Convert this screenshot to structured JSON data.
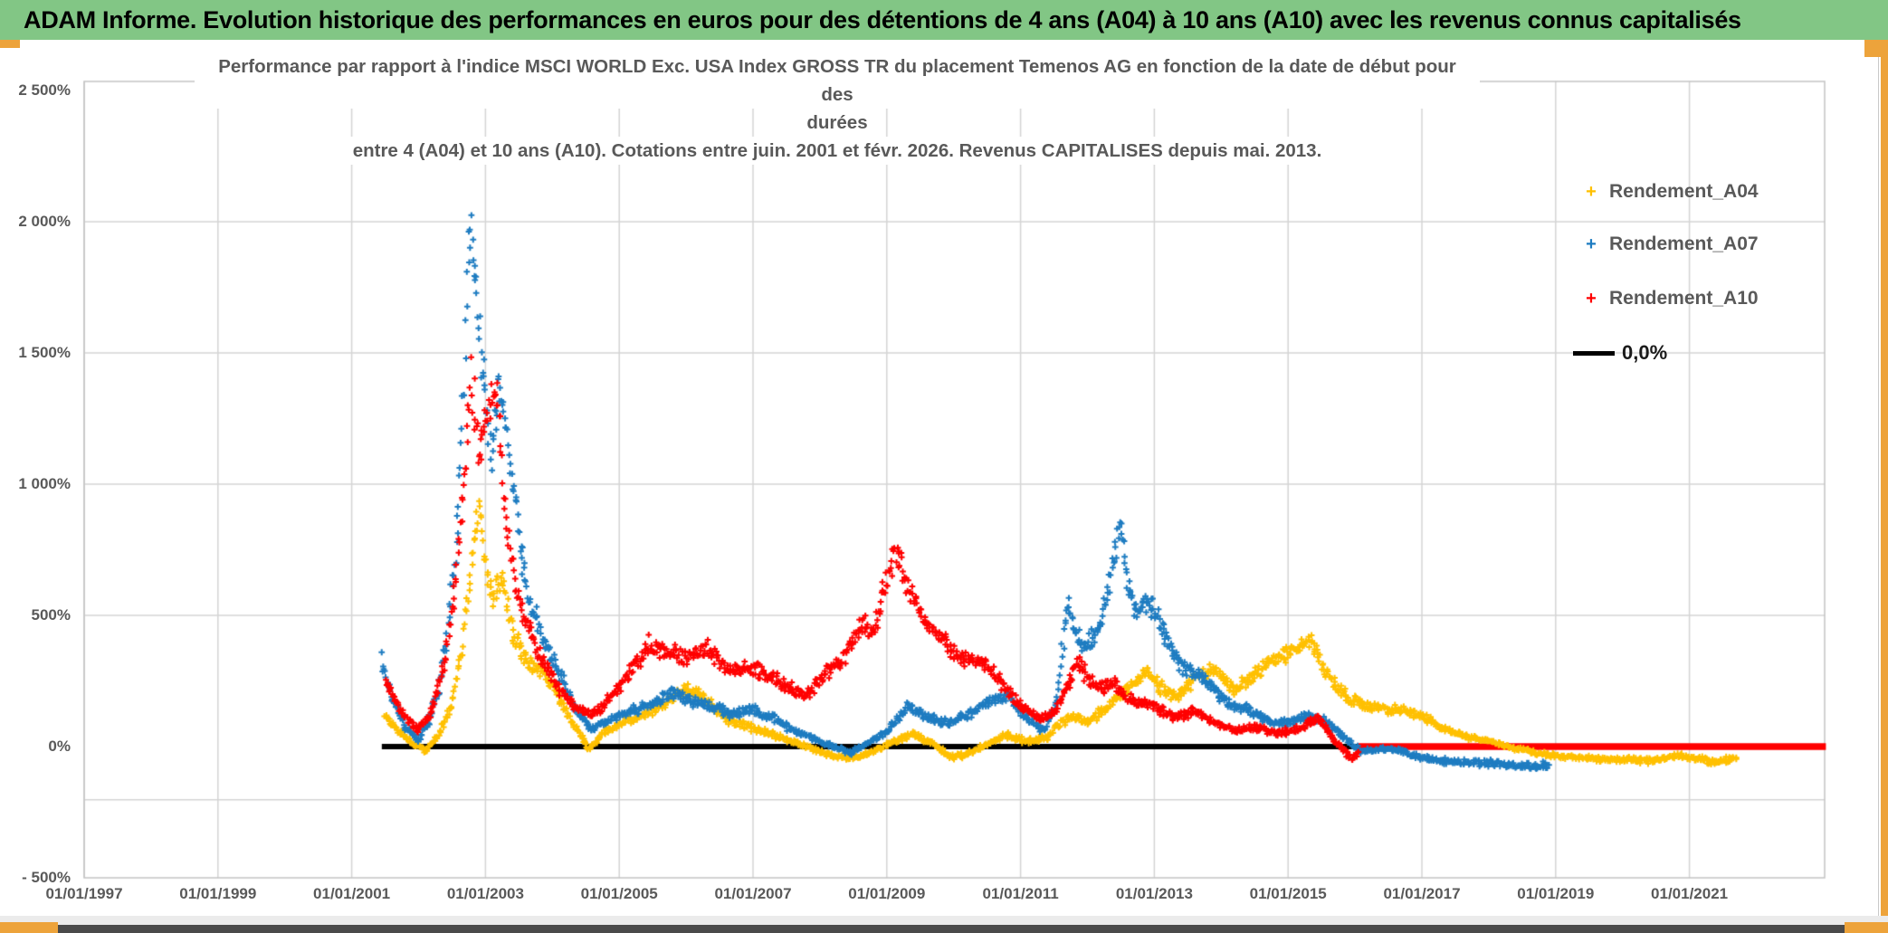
{
  "header": {
    "title": "ADAM Informe. Evolution historique des performances en euros pour des détentions de 4 ans (A04) à 10 ans (A10) avec les revenus connus capitalisés"
  },
  "chart_data": {
    "type": "scatter",
    "title_lines": [
      "Performance par rapport à l'indice MSCI WORLD Exc. USA Index GROSS TR  du placement Temenos AG en fonction de la date de début pour des",
      "durées",
      "entre 4 (A04) et 10 ans (A10). Cotations entre juin. 2001 et févr. 2026. Revenus CAPITALISES depuis mai. 2013."
    ],
    "y_axis": {
      "unit": "%",
      "range": [
        -500,
        2534
      ],
      "ticks": [
        {
          "label": "2 500%",
          "value": 2500
        },
        {
          "label": "2 000%",
          "value": 2000
        },
        {
          "label": "1 500%",
          "value": 1500
        },
        {
          "label": "1 000%",
          "value": 1000
        },
        {
          "label": "500%",
          "value": 500
        },
        {
          "label": "0%",
          "value": 0
        },
        {
          "label": "- 500%",
          "value": -500
        }
      ],
      "extra_gridline_value": -203,
      "gridlines_at": [
        2000,
        1500,
        1000,
        500
      ]
    },
    "x_axis": {
      "range_years": [
        1997,
        2023
      ],
      "ticks": [
        {
          "label": "01/01/1997",
          "year": 1997
        },
        {
          "label": "01/01/1999",
          "year": 1999
        },
        {
          "label": "01/01/2001",
          "year": 2001
        },
        {
          "label": "01/01/2003",
          "year": 2003
        },
        {
          "label": "01/01/2005",
          "year": 2005
        },
        {
          "label": "01/01/2007",
          "year": 2007
        },
        {
          "label": "01/01/2009",
          "year": 2009
        },
        {
          "label": "01/01/2011",
          "year": 2011
        },
        {
          "label": "01/01/2013",
          "year": 2013
        },
        {
          "label": "01/01/2015",
          "year": 2015
        },
        {
          "label": "01/01/2017",
          "year": 2017
        },
        {
          "label": "01/01/2019",
          "year": 2019
        },
        {
          "label": "01/01/2021",
          "year": 2021
        }
      ]
    },
    "zero_line": {
      "label": "0,0%",
      "value": 0,
      "start_year": 2001.45,
      "end_year": 2023.0,
      "color": "#000000"
    },
    "no_data_flat_segment": {
      "series": "Rendement_A10",
      "value": 0,
      "start_year": 2016.05,
      "end_year": 2023.0,
      "color": "#FF0000"
    },
    "legend": {
      "position": "top-right",
      "entries": [
        {
          "label": "Rendement_A04",
          "color": "#FFC000",
          "marker": "plus"
        },
        {
          "label": "Rendement_A07",
          "color": "#1E7CC1",
          "marker": "plus"
        },
        {
          "label": "Rendement_A10",
          "color": "#FF0000",
          "marker": "plus"
        },
        {
          "label": "0,0%",
          "color": "#000000",
          "marker": "line"
        }
      ]
    },
    "series": [
      {
        "name": "Rendement_A04",
        "color": "#FFC000",
        "marker": "plus",
        "anchors": [
          [
            2001.5,
            110
          ],
          [
            2001.7,
            60
          ],
          [
            2001.9,
            15
          ],
          [
            2002.1,
            -20
          ],
          [
            2002.3,
            45
          ],
          [
            2002.5,
            160
          ],
          [
            2002.65,
            380
          ],
          [
            2002.78,
            660
          ],
          [
            2002.9,
            935
          ],
          [
            2003.0,
            700
          ],
          [
            2003.1,
            560
          ],
          [
            2003.25,
            640
          ],
          [
            2003.4,
            430
          ],
          [
            2003.6,
            330
          ],
          [
            2003.8,
            290
          ],
          [
            2004.0,
            245
          ],
          [
            2004.3,
            90
          ],
          [
            2004.55,
            -10
          ],
          [
            2004.8,
            60
          ],
          [
            2005.1,
            95
          ],
          [
            2005.4,
            125
          ],
          [
            2005.7,
            165
          ],
          [
            2006.0,
            225
          ],
          [
            2006.3,
            180
          ],
          [
            2006.6,
            105
          ],
          [
            2006.9,
            80
          ],
          [
            2007.2,
            55
          ],
          [
            2007.5,
            25
          ],
          [
            2007.8,
            0
          ],
          [
            2008.1,
            -30
          ],
          [
            2008.5,
            -45
          ],
          [
            2008.8,
            -20
          ],
          [
            2009.1,
            20
          ],
          [
            2009.4,
            45
          ],
          [
            2009.7,
            10
          ],
          [
            2009.95,
            -40
          ],
          [
            2010.2,
            -30
          ],
          [
            2010.5,
            10
          ],
          [
            2010.8,
            45
          ],
          [
            2011.1,
            20
          ],
          [
            2011.4,
            35
          ],
          [
            2011.6,
            90
          ],
          [
            2011.8,
            115
          ],
          [
            2012.0,
            95
          ],
          [
            2012.3,
            145
          ],
          [
            2012.6,
            225
          ],
          [
            2012.9,
            280
          ],
          [
            2013.1,
            225
          ],
          [
            2013.35,
            190
          ],
          [
            2013.6,
            260
          ],
          [
            2013.9,
            295
          ],
          [
            2014.2,
            215
          ],
          [
            2014.5,
            275
          ],
          [
            2014.8,
            335
          ],
          [
            2015.0,
            355
          ],
          [
            2015.35,
            400
          ],
          [
            2015.6,
            265
          ],
          [
            2015.9,
            185
          ],
          [
            2016.2,
            150
          ],
          [
            2016.6,
            140
          ],
          [
            2017.0,
            120
          ],
          [
            2017.3,
            70
          ],
          [
            2017.6,
            42
          ],
          [
            2018.0,
            22
          ],
          [
            2018.4,
            -8
          ],
          [
            2018.8,
            -28
          ],
          [
            2019.2,
            -38
          ],
          [
            2019.6,
            -45
          ],
          [
            2020.0,
            -50
          ],
          [
            2020.4,
            -55
          ],
          [
            2020.8,
            -35
          ],
          [
            2021.1,
            -45
          ],
          [
            2021.4,
            -60
          ],
          [
            2021.7,
            -42
          ]
        ]
      },
      {
        "name": "Rendement_A07",
        "color": "#1E7CC1",
        "marker": "plus",
        "anchors": [
          [
            2001.45,
            330
          ],
          [
            2001.6,
            185
          ],
          [
            2001.8,
            75
          ],
          [
            2002.0,
            20
          ],
          [
            2002.15,
            95
          ],
          [
            2002.3,
            225
          ],
          [
            2002.45,
            480
          ],
          [
            2002.6,
            900
          ],
          [
            2002.7,
            1500
          ],
          [
            2002.78,
            2040
          ],
          [
            2002.85,
            1820
          ],
          [
            2002.92,
            1600
          ],
          [
            2003.0,
            1300
          ],
          [
            2003.1,
            1100
          ],
          [
            2003.2,
            1380
          ],
          [
            2003.35,
            1150
          ],
          [
            2003.5,
            800
          ],
          [
            2003.65,
            560
          ],
          [
            2003.85,
            430
          ],
          [
            2004.1,
            280
          ],
          [
            2004.35,
            140
          ],
          [
            2004.6,
            65
          ],
          [
            2004.9,
            110
          ],
          [
            2005.2,
            140
          ],
          [
            2005.5,
            160
          ],
          [
            2005.8,
            205
          ],
          [
            2006.1,
            170
          ],
          [
            2006.4,
            150
          ],
          [
            2006.7,
            125
          ],
          [
            2007.0,
            140
          ],
          [
            2007.3,
            110
          ],
          [
            2007.6,
            60
          ],
          [
            2007.9,
            30
          ],
          [
            2008.2,
            0
          ],
          [
            2008.45,
            -25
          ],
          [
            2008.7,
            10
          ],
          [
            2009.0,
            60
          ],
          [
            2009.3,
            150
          ],
          [
            2009.6,
            110
          ],
          [
            2009.9,
            90
          ],
          [
            2010.2,
            120
          ],
          [
            2010.5,
            170
          ],
          [
            2010.8,
            190
          ],
          [
            2011.1,
            110
          ],
          [
            2011.35,
            60
          ],
          [
            2011.55,
            180
          ],
          [
            2011.7,
            550
          ],
          [
            2011.85,
            420
          ],
          [
            2012.0,
            370
          ],
          [
            2012.2,
            480
          ],
          [
            2012.35,
            650
          ],
          [
            2012.5,
            865
          ],
          [
            2012.6,
            600
          ],
          [
            2012.75,
            505
          ],
          [
            2012.9,
            560
          ],
          [
            2013.1,
            460
          ],
          [
            2013.35,
            320
          ],
          [
            2013.6,
            280
          ],
          [
            2013.85,
            230
          ],
          [
            2014.1,
            160
          ],
          [
            2014.4,
            140
          ],
          [
            2014.7,
            100
          ],
          [
            2015.0,
            90
          ],
          [
            2015.3,
            120
          ],
          [
            2015.6,
            90
          ],
          [
            2015.9,
            20
          ],
          [
            2016.1,
            -20
          ],
          [
            2016.4,
            -10
          ],
          [
            2016.7,
            -18
          ],
          [
            2017.0,
            -42
          ],
          [
            2017.3,
            -55
          ],
          [
            2017.6,
            -60
          ],
          [
            2018.0,
            -62
          ],
          [
            2018.3,
            -70
          ],
          [
            2018.6,
            -76
          ],
          [
            2018.9,
            -70
          ]
        ]
      },
      {
        "name": "Rendement_A10",
        "color": "#FF0000",
        "marker": "plus",
        "anchors": [
          [
            2001.5,
            260
          ],
          [
            2001.75,
            125
          ],
          [
            2002.0,
            62
          ],
          [
            2002.2,
            140
          ],
          [
            2002.4,
            320
          ],
          [
            2002.55,
            620
          ],
          [
            2002.7,
            1060
          ],
          [
            2002.8,
            1400
          ],
          [
            2002.9,
            1120
          ],
          [
            2003.0,
            1250
          ],
          [
            2003.15,
            1385
          ],
          [
            2003.3,
            900
          ],
          [
            2003.45,
            620
          ],
          [
            2003.6,
            470
          ],
          [
            2003.8,
            350
          ],
          [
            2004.1,
            220
          ],
          [
            2004.35,
            150
          ],
          [
            2004.6,
            120
          ],
          [
            2004.85,
            180
          ],
          [
            2005.1,
            260
          ],
          [
            2005.45,
            390
          ],
          [
            2005.7,
            360
          ],
          [
            2006.0,
            340
          ],
          [
            2006.3,
            380
          ],
          [
            2006.6,
            285
          ],
          [
            2006.9,
            305
          ],
          [
            2007.2,
            270
          ],
          [
            2007.5,
            230
          ],
          [
            2007.8,
            195
          ],
          [
            2008.1,
            280
          ],
          [
            2008.4,
            355
          ],
          [
            2008.65,
            490
          ],
          [
            2008.8,
            430
          ],
          [
            2009.0,
            650
          ],
          [
            2009.15,
            762
          ],
          [
            2009.3,
            620
          ],
          [
            2009.5,
            505
          ],
          [
            2009.7,
            435
          ],
          [
            2009.9,
            390
          ],
          [
            2010.1,
            335
          ],
          [
            2010.4,
            330
          ],
          [
            2010.7,
            250
          ],
          [
            2011.0,
            155
          ],
          [
            2011.3,
            100
          ],
          [
            2011.5,
            130
          ],
          [
            2011.7,
            225
          ],
          [
            2011.85,
            335
          ],
          [
            2012.0,
            255
          ],
          [
            2012.2,
            220
          ],
          [
            2012.4,
            250
          ],
          [
            2012.6,
            185
          ],
          [
            2012.8,
            172
          ],
          [
            2013.0,
            150
          ],
          [
            2013.3,
            112
          ],
          [
            2013.6,
            132
          ],
          [
            2013.9,
            92
          ],
          [
            2014.2,
            62
          ],
          [
            2014.5,
            72
          ],
          [
            2014.8,
            52
          ],
          [
            2015.1,
            62
          ],
          [
            2015.45,
            105
          ],
          [
            2015.7,
            22
          ],
          [
            2015.95,
            -52
          ],
          [
            2016.05,
            -20
          ]
        ]
      }
    ]
  }
}
